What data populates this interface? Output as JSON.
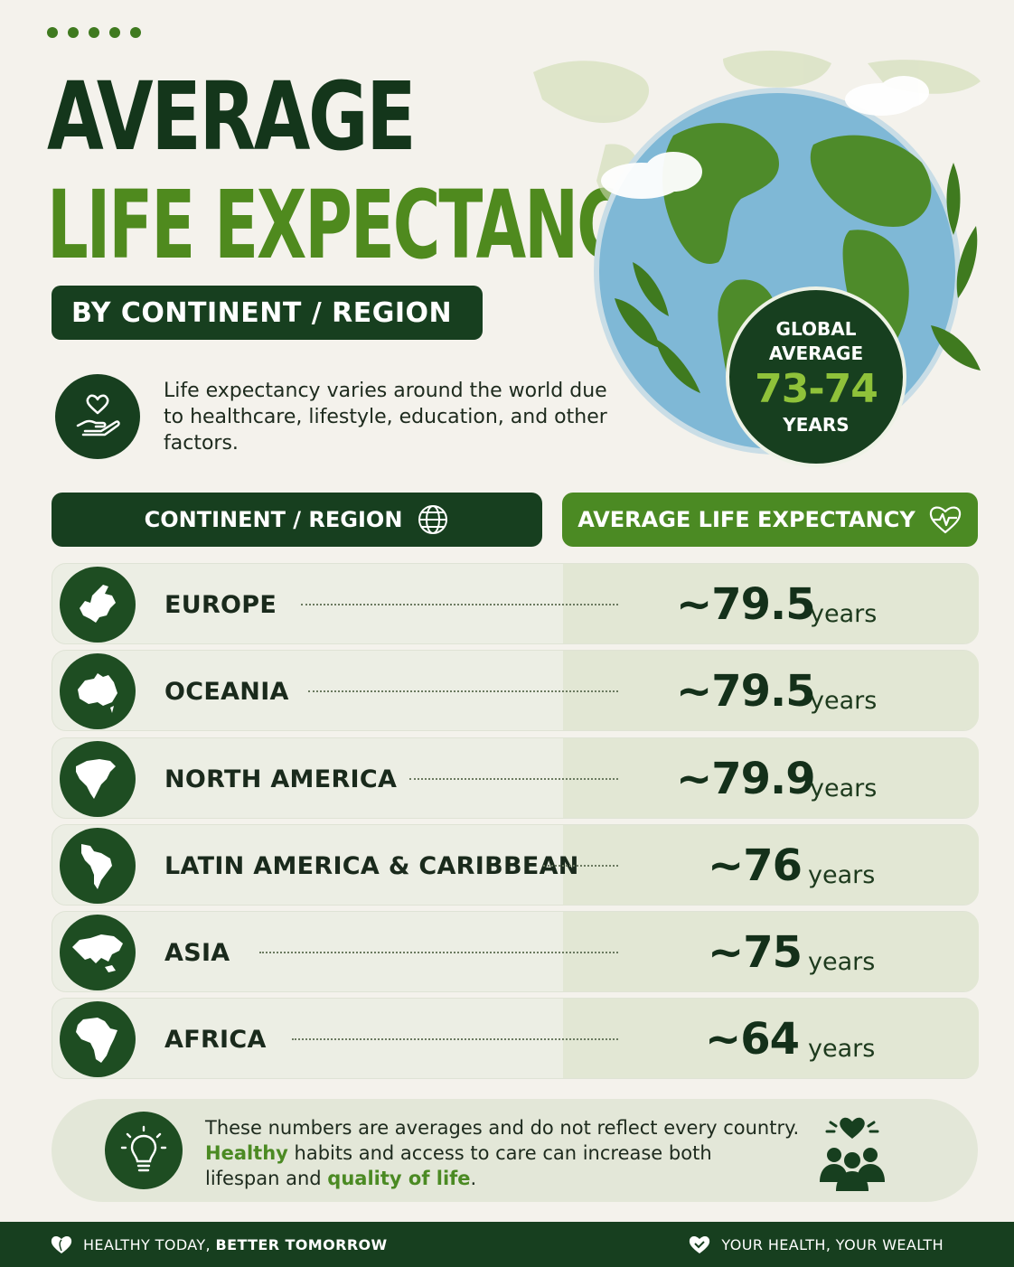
{
  "header": {
    "title_line1": "AVERAGE",
    "title_line2": "LIFE EXPECTANCY",
    "subtitle": "BY CONTINENT / REGION",
    "intro": "Life expectancy varies around the world due to healthcare, lifestyle, education, and other factors."
  },
  "global": {
    "label1": "GLOBAL",
    "label2": "AVERAGE",
    "value": "73-74",
    "unit": "YEARS"
  },
  "table": {
    "col_region": "CONTINENT / REGION",
    "col_value": "AVERAGE LIFE EXPECTANCY",
    "rows": [
      {
        "name": "EUROPE",
        "value": "~79.5",
        "unit": "years",
        "icon": "europe-map-icon"
      },
      {
        "name": "OCEANIA",
        "value": "~79.5",
        "unit": "years",
        "icon": "oceania-map-icon"
      },
      {
        "name": "NORTH AMERICA",
        "value": "~79.9",
        "unit": "years",
        "icon": "north-america-map-icon"
      },
      {
        "name": "LATIN AMERICA & CARIBBEAN",
        "value": "~76",
        "unit": "years",
        "icon": "latin-america-map-icon"
      },
      {
        "name": "ASIA",
        "value": "~75",
        "unit": "years",
        "icon": "asia-map-icon"
      },
      {
        "name": "AFRICA",
        "value": "~64",
        "unit": "years",
        "icon": "africa-map-icon"
      }
    ]
  },
  "note": {
    "line1": "These numbers are averages and do not reflect every country.",
    "hl1": "Healthy",
    "mid1": " habits",
    "mid2": " and access to care can increase both",
    "line3": "lifespan and ",
    "hl2": "quality of life",
    "end": "."
  },
  "footer": {
    "left_plain": "HEALTHY TODAY, ",
    "left_bold": "BETTER TOMORROW",
    "right": "YOUR HEALTH, YOUR WEALTH"
  },
  "colors": {
    "dark_green": "#173f1f",
    "accent_green": "#4b8a23",
    "light_green": "#8fc23a",
    "background": "#f4f2ec"
  }
}
